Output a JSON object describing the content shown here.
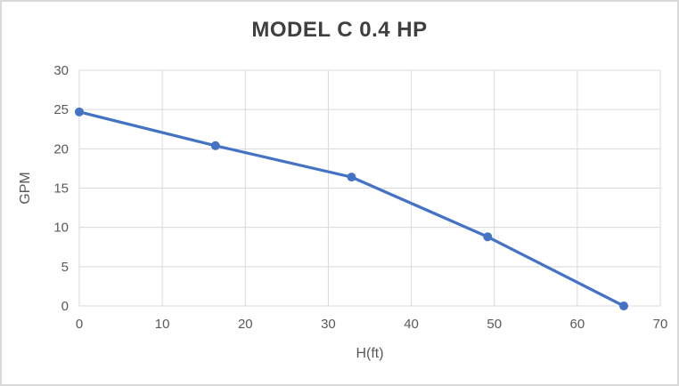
{
  "chart_data": {
    "type": "line",
    "title": "MODEL C 0.4 HP",
    "xlabel": "H(ft)",
    "ylabel": "GPM",
    "series": [
      {
        "name": "Model C 0.4 HP pump curve",
        "x": [
          0,
          16.4,
          32.8,
          49.2,
          65.6
        ],
        "y": [
          24.7,
          20.4,
          16.4,
          8.8,
          0
        ]
      }
    ],
    "xlim": [
      0,
      70
    ],
    "ylim": [
      0,
      30
    ],
    "x_ticks": [
      0,
      10,
      20,
      30,
      40,
      50,
      60,
      70
    ],
    "y_ticks": [
      0,
      5,
      10,
      15,
      20,
      25,
      30
    ],
    "grid": true,
    "legend": false,
    "colors": {
      "series": "#4472c4",
      "gridline": "#d9d9d9",
      "tick_text": "#595959",
      "axis_title_text": "#595959",
      "title_text": "#3f3f3f",
      "background": "#ffffff",
      "frame_border": "#d9d9d9"
    }
  }
}
